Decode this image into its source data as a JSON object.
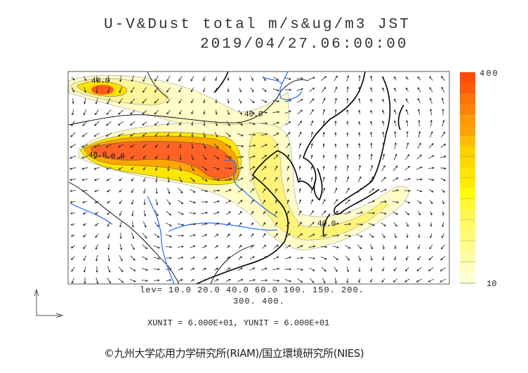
{
  "header": {
    "title": "U-V&Dust total m/s&ug/m3 JST",
    "datetime": "2019/04/27.06:00:00"
  },
  "map": {
    "contour_labels": [
      "40.0",
      "40.0",
      "40.0",
      "40.0",
      "0.0"
    ],
    "coastline_color": "#000000",
    "river_color": "#1a6cff"
  },
  "colorbar": {
    "max_label": "400",
    "min_label": "10",
    "colors": [
      "#ff4a0a",
      "#ff5a08",
      "#ff7208",
      "#ff8208",
      "#ff9a06",
      "#ffa208",
      "#ffbe05",
      "#ffd000",
      "#ffd800",
      "#ffe600",
      "#ffea00",
      "#ffff00",
      "#fff830",
      "#fff850",
      "#fffa66",
      "#fffa78",
      "#fffb8c",
      "#fffca6",
      "#fffdc0",
      "#fffed4"
    ]
  },
  "footer": {
    "lev_line1": "lev= 10.0 20.0 40.0 60.0 100. 150. 200.",
    "lev_line2": "300. 400.",
    "units": "XUNIT = 6.000E+01, YUNIT = 6.000E+01",
    "credit": "©九州大学応用力学研究所(RIAM)/国立環境研究所(NIES)"
  }
}
